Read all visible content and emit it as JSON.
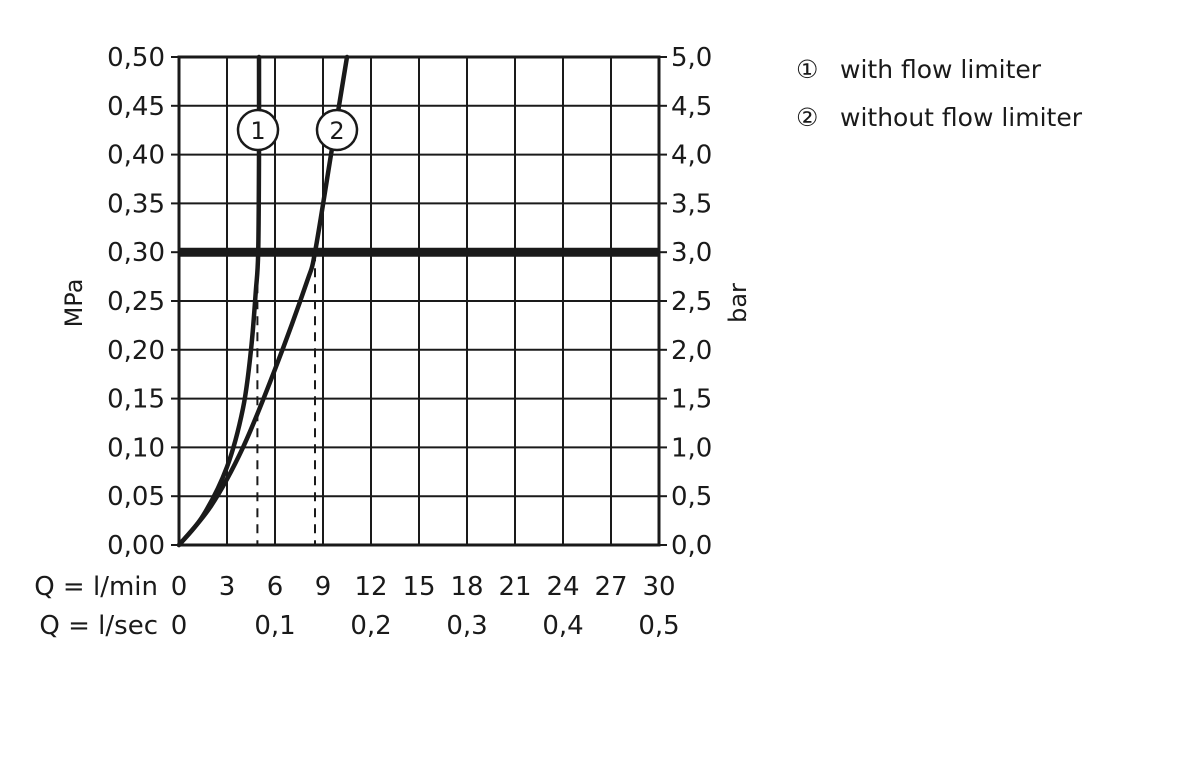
{
  "chart_data": {
    "type": "line",
    "title": "",
    "ylabel_left": "MPa",
    "ylabel_right": "bar",
    "x_row_labels": [
      "Q = l/min",
      "Q = l/sec"
    ],
    "x_ticks_lmin": [
      "0",
      "3",
      "6",
      "9",
      "12",
      "15",
      "18",
      "21",
      "24",
      "27",
      "30"
    ],
    "x_ticks_lsec": [
      {
        "value": 0,
        "label": "0"
      },
      {
        "value": 0.1,
        "label": "0,1"
      },
      {
        "value": 0.2,
        "label": "0,2"
      },
      {
        "value": 0.3,
        "label": "0,3"
      },
      {
        "value": 0.4,
        "label": "0,4"
      },
      {
        "value": 0.5,
        "label": "0,5"
      }
    ],
    "y_ticks_mpa": [
      "0,00",
      "0,05",
      "0,10",
      "0,15",
      "0,20",
      "0,25",
      "0,30",
      "0,35",
      "0,40",
      "0,45",
      "0,50"
    ],
    "y_ticks_bar": [
      "0,0",
      "0,5",
      "1,0",
      "1,5",
      "2,0",
      "2,5",
      "3,0",
      "3,5",
      "4,0",
      "4,5",
      "5,0"
    ],
    "xlim_lmin": [
      0,
      30
    ],
    "ylim_mpa": [
      0,
      0.5
    ],
    "grid": true,
    "reference_line": {
      "y_mpa": 0.3
    },
    "series": [
      {
        "marker": "1",
        "name": "with flow limiter",
        "x_lmin": [
          0,
          1.5,
          3,
          4,
          4.5,
          4.8,
          4.95,
          5.0,
          5.0
        ],
        "y_mpa": [
          0,
          0.03,
          0.08,
          0.14,
          0.2,
          0.26,
          0.3,
          0.4,
          0.5
        ],
        "flow_at_reference_lmin": 4.9
      },
      {
        "marker": "2",
        "name": "without flow limiter",
        "x_lmin": [
          0,
          2,
          4,
          6,
          8,
          8.5,
          9.5,
          10.5
        ],
        "y_mpa": [
          0,
          0.04,
          0.1,
          0.18,
          0.27,
          0.3,
          0.4,
          0.5
        ],
        "flow_at_reference_lmin": 8.5
      }
    ],
    "legend_position": "top-right"
  },
  "legend": {
    "items": [
      {
        "symbol": "①",
        "label": "with flow limiter"
      },
      {
        "symbol": "②",
        "label": "without flow limiter"
      }
    ]
  }
}
